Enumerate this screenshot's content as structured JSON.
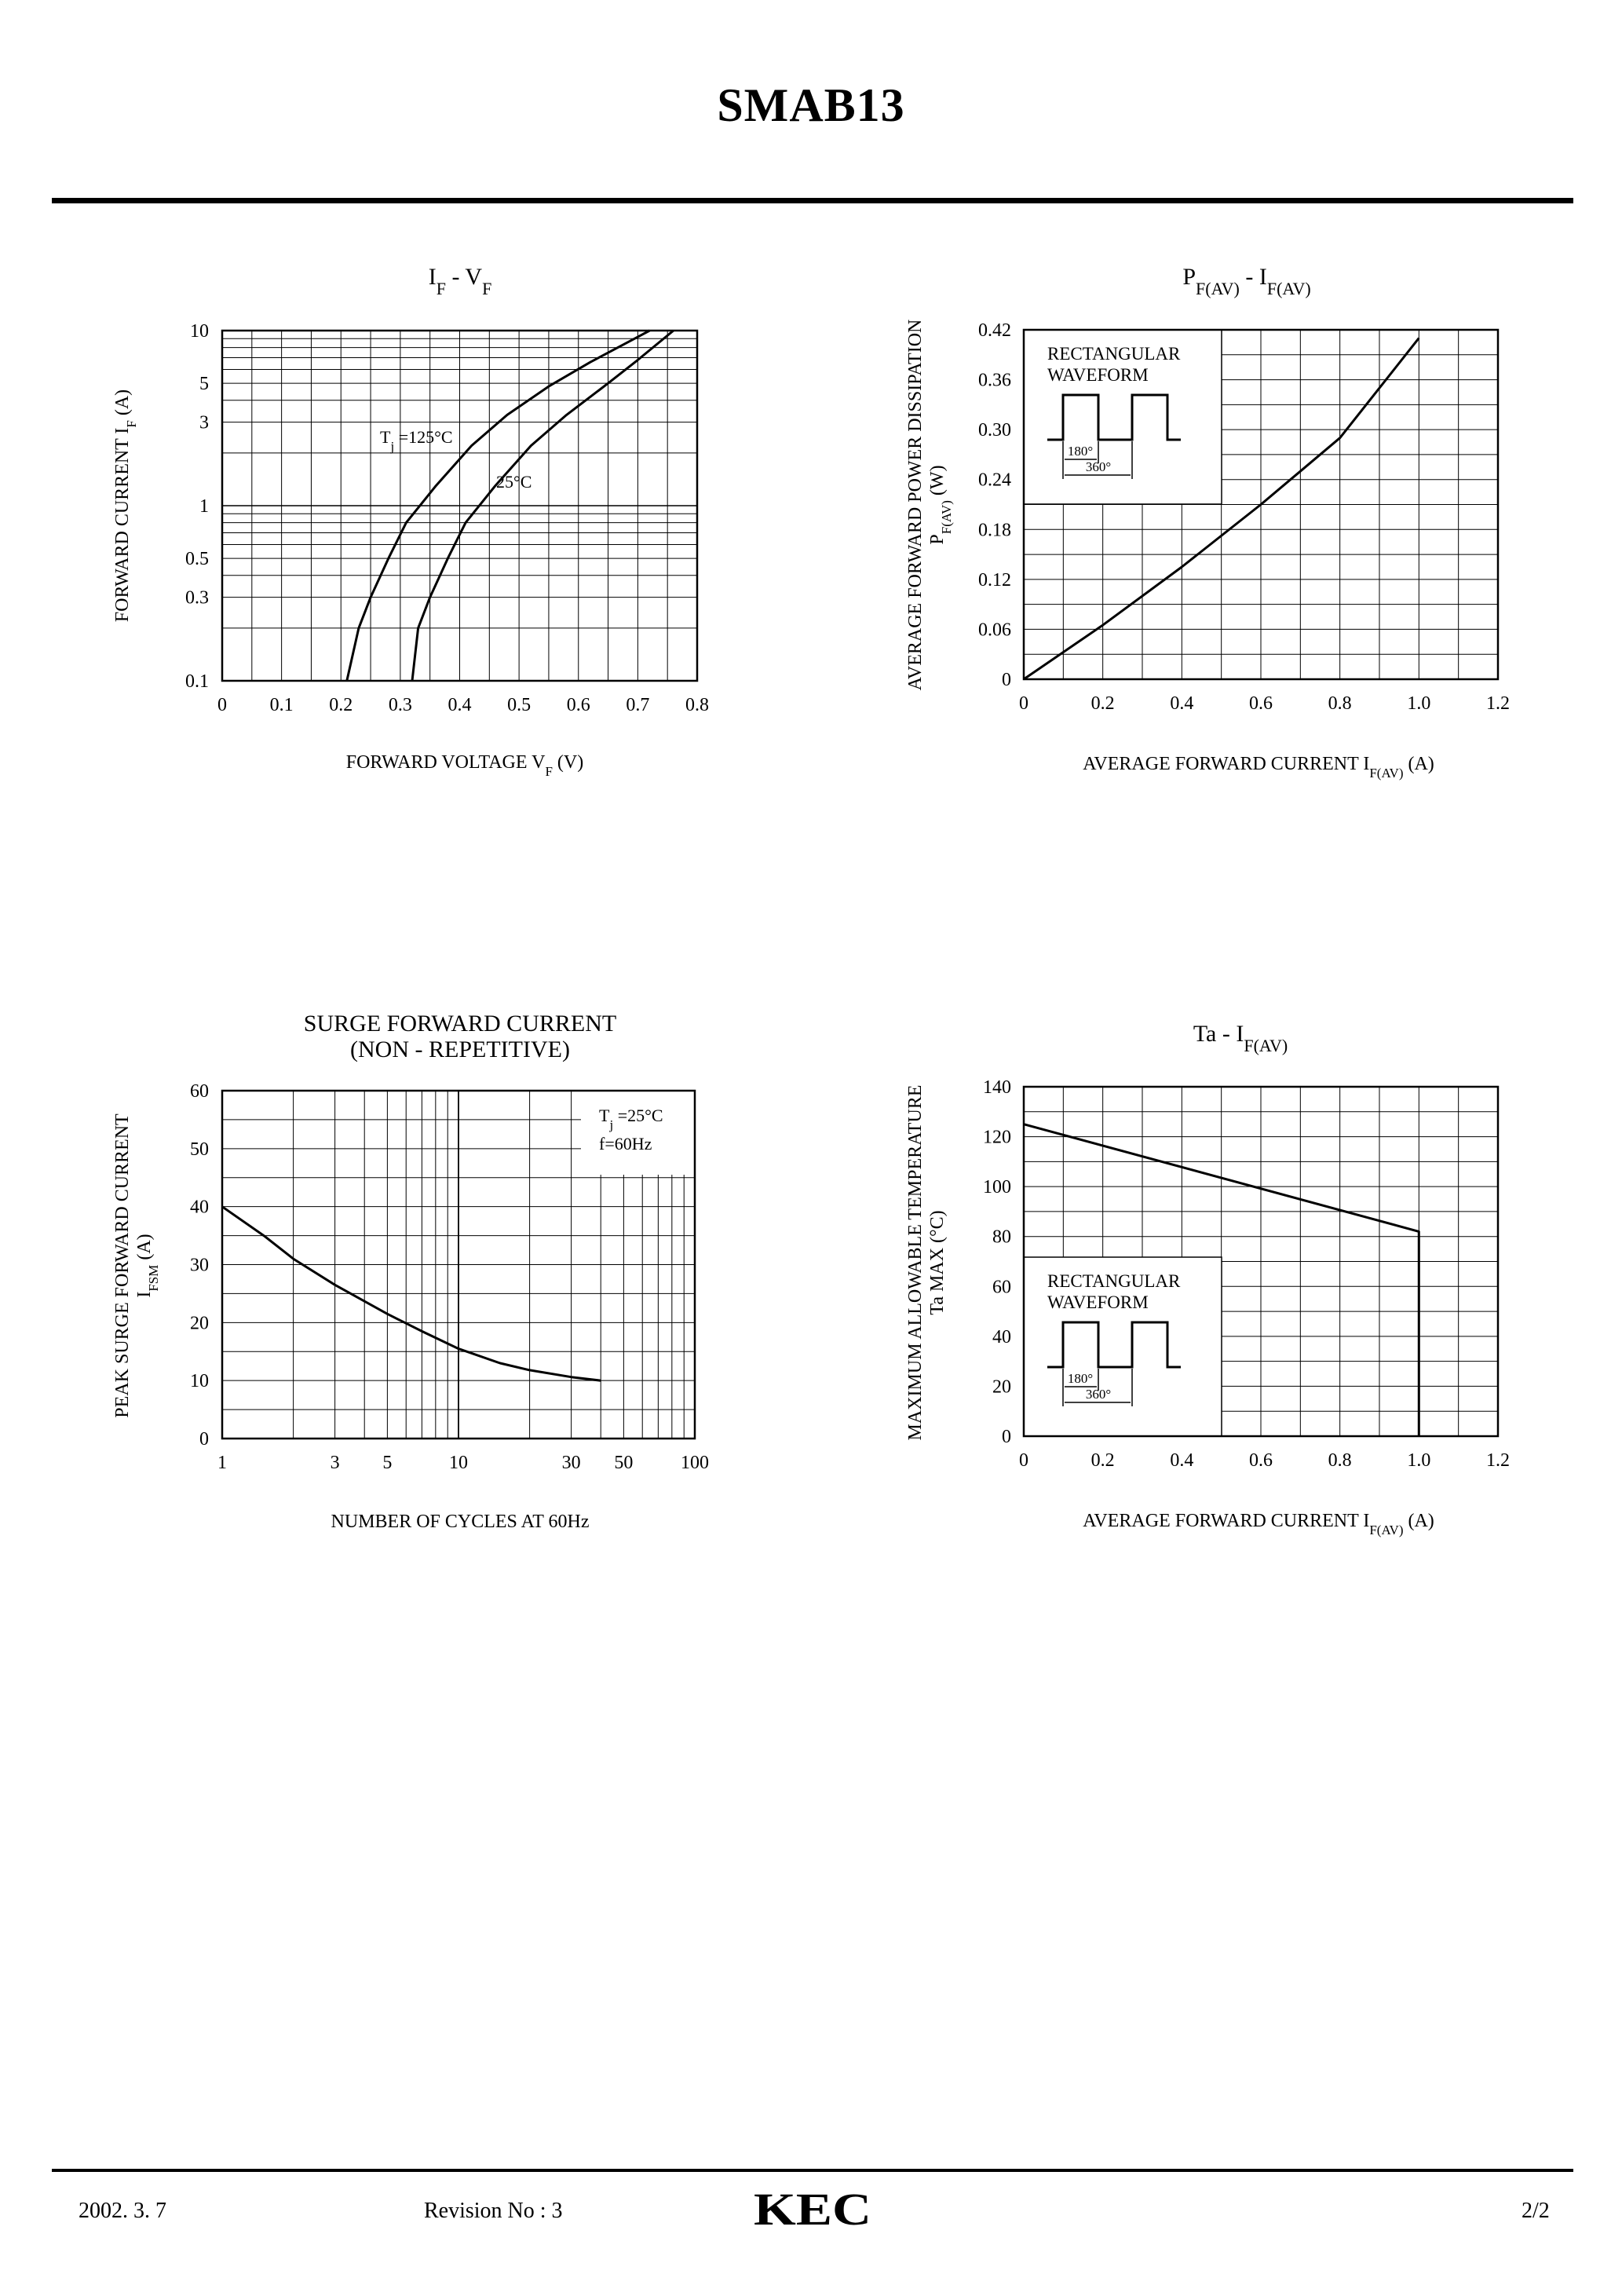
{
  "document": {
    "title": "SMAB13",
    "footer": {
      "date": "2002. 3. 7",
      "revision": "Revision No : 3",
      "page": "2/2",
      "logo_text": "KEC"
    }
  },
  "chart_data": [
    {
      "id": "if-vf",
      "type": "line",
      "title": {
        "main": "I",
        "sub1": "F",
        "mid": "  -  V",
        "sub2": "F"
      },
      "xlabel": {
        "main": "FORWARD VOLTAGE V",
        "sub": "F",
        "tail": "  (V)"
      },
      "ylabel": {
        "main": "FORWARD CURRENT I",
        "sub": "F",
        "tail": "  (A)"
      },
      "x_scale": "linear",
      "y_scale": "log",
      "xlim": [
        0,
        0.8
      ],
      "ylim": [
        0.1,
        10
      ],
      "x_ticks": [
        0,
        0.1,
        0.2,
        0.3,
        0.4,
        0.5,
        0.6,
        0.7,
        0.8
      ],
      "x_tick_labels": [
        "0",
        "0.1",
        "0.2",
        "0.3",
        "0.4",
        "0.5",
        "0.6",
        "0.7",
        "0.8"
      ],
      "y_ticks": [
        0.1,
        0.3,
        0.5,
        1,
        3,
        5,
        10
      ],
      "y_tick_labels": [
        "0.1",
        "0.3",
        "0.5",
        "1",
        "3",
        "5",
        "10"
      ],
      "grid": true,
      "series": [
        {
          "label_html": "T<tspan baseline-shift=\"sub\" font-size=\"17\">j</tspan> =125°C",
          "points": [
            [
              0.21,
              0.1
            ],
            [
              0.23,
              0.2
            ],
            [
              0.25,
              0.3
            ],
            [
              0.28,
              0.5
            ],
            [
              0.31,
              0.8
            ],
            [
              0.36,
              1.3
            ],
            [
              0.42,
              2.2
            ],
            [
              0.48,
              3.3
            ],
            [
              0.55,
              4.8
            ],
            [
              0.62,
              6.6
            ],
            [
              0.7,
              9.2
            ],
            [
              0.72,
              10
            ]
          ]
        },
        {
          "label_html": "25°C",
          "points": [
            [
              0.32,
              0.1
            ],
            [
              0.33,
              0.2
            ],
            [
              0.35,
              0.3
            ],
            [
              0.38,
              0.5
            ],
            [
              0.41,
              0.8
            ],
            [
              0.46,
              1.3
            ],
            [
              0.52,
              2.2
            ],
            [
              0.58,
              3.3
            ],
            [
              0.65,
              5.0
            ],
            [
              0.7,
              6.8
            ],
            [
              0.76,
              10
            ]
          ]
        }
      ]
    },
    {
      "id": "pf-if",
      "type": "line",
      "title": {
        "main": "P",
        "sub1": "F(AV)",
        "mid": "  -  I",
        "sub2": "F(AV)"
      },
      "xlabel": {
        "main": "AVERAGE FORWARD CURRENT I",
        "sub": "F(AV)",
        "tail": "  (A)"
      },
      "ylabel": {
        "line1": "AVERAGE FORWARD POWER DISSIPATION",
        "line2_main": "P",
        "line2_sub": "F(AV)",
        "line2_tail": "  (W)"
      },
      "x_scale": "linear",
      "y_scale": "linear",
      "xlim": [
        0,
        1.2
      ],
      "ylim": [
        0,
        0.42
      ],
      "x_ticks": [
        0,
        0.2,
        0.4,
        0.6,
        0.8,
        1.0,
        1.2
      ],
      "x_tick_labels": [
        "0",
        "0.2",
        "0.4",
        "0.6",
        "0.8",
        "1.0",
        "1.2"
      ],
      "y_ticks": [
        0,
        0.06,
        0.12,
        0.18,
        0.24,
        0.3,
        0.36,
        0.42
      ],
      "y_tick_labels": [
        "0",
        "0.06",
        "0.12",
        "0.18",
        "0.24",
        "0.30",
        "0.36",
        "0.42"
      ],
      "grid": true,
      "inset": {
        "line1": "RECTANGULAR",
        "line2": "WAVEFORM",
        "angle1": "180°",
        "angle2": "360°"
      },
      "series": [
        {
          "points": [
            [
              0,
              0
            ],
            [
              0.2,
              0.065
            ],
            [
              0.4,
              0.135
            ],
            [
              0.6,
              0.21
            ],
            [
              0.8,
              0.29
            ],
            [
              1.0,
              0.41
            ]
          ]
        }
      ]
    },
    {
      "id": "surge",
      "type": "line",
      "title": {
        "line1": "SURGE FORWARD CURRENT",
        "line2": "(NON - REPETITIVE)"
      },
      "xlabel": "NUMBER OF CYCLES AT 60Hz",
      "ylabel": {
        "line1": "PEAK SURGE FORWARD CURRENT",
        "line2_main": "I",
        "line2_sub": "FSM",
        "line2_tail": "  (A)"
      },
      "x_scale": "log",
      "y_scale": "linear",
      "xlim": [
        1,
        100
      ],
      "ylim": [
        0,
        60
      ],
      "x_ticks": [
        1,
        3,
        5,
        10,
        30,
        50,
        100
      ],
      "x_tick_labels": [
        "1",
        "3",
        "5",
        "10",
        "30",
        "50",
        "100"
      ],
      "y_ticks": [
        0,
        10,
        20,
        30,
        40,
        50,
        60
      ],
      "y_tick_labels": [
        "0",
        "10",
        "20",
        "30",
        "40",
        "50",
        "60"
      ],
      "grid": true,
      "annotation": {
        "line1_html": "T<tspan baseline-shift=\"sub\" font-size=\"17\">j</tspan> =25°C",
        "line2": "f=60Hz"
      },
      "series": [
        {
          "points": [
            [
              1,
              40
            ],
            [
              1.5,
              35
            ],
            [
              2,
              31
            ],
            [
              3,
              26.5
            ],
            [
              5,
              21.5
            ],
            [
              7,
              18.5
            ],
            [
              10,
              15.5
            ],
            [
              15,
              13
            ],
            [
              20,
              11.8
            ],
            [
              30,
              10.6
            ],
            [
              40,
              10
            ]
          ]
        }
      ]
    },
    {
      "id": "ta-if",
      "type": "line",
      "title": {
        "main": "Ta  -  I",
        "sub": "F(AV)"
      },
      "xlabel": {
        "main": "AVERAGE FORWARD CURRENT I",
        "sub": "F(AV)",
        "tail": "  (A)"
      },
      "ylabel": {
        "line1": "MAXIMUM ALLOWABLE TEMPERATURE",
        "line2": "Ta MAX  (°C)"
      },
      "x_scale": "linear",
      "y_scale": "linear",
      "xlim": [
        0,
        1.2
      ],
      "ylim": [
        0,
        140
      ],
      "x_ticks": [
        0,
        0.2,
        0.4,
        0.6,
        0.8,
        1.0,
        1.2
      ],
      "x_tick_labels": [
        "0",
        "0.2",
        "0.4",
        "0.6",
        "0.8",
        "1.0",
        "1.2"
      ],
      "y_ticks": [
        0,
        20,
        40,
        60,
        80,
        100,
        120,
        140
      ],
      "y_tick_labels": [
        "0",
        "20",
        "40",
        "60",
        "80",
        "100",
        "120",
        "140"
      ],
      "grid": true,
      "inset": {
        "line1": "RECTANGULAR",
        "line2": "WAVEFORM",
        "angle1": "180°",
        "angle2": "360°"
      },
      "series": [
        {
          "points": [
            [
              0,
              125
            ],
            [
              1.0,
              82
            ],
            [
              1.0,
              0
            ]
          ]
        }
      ]
    }
  ]
}
